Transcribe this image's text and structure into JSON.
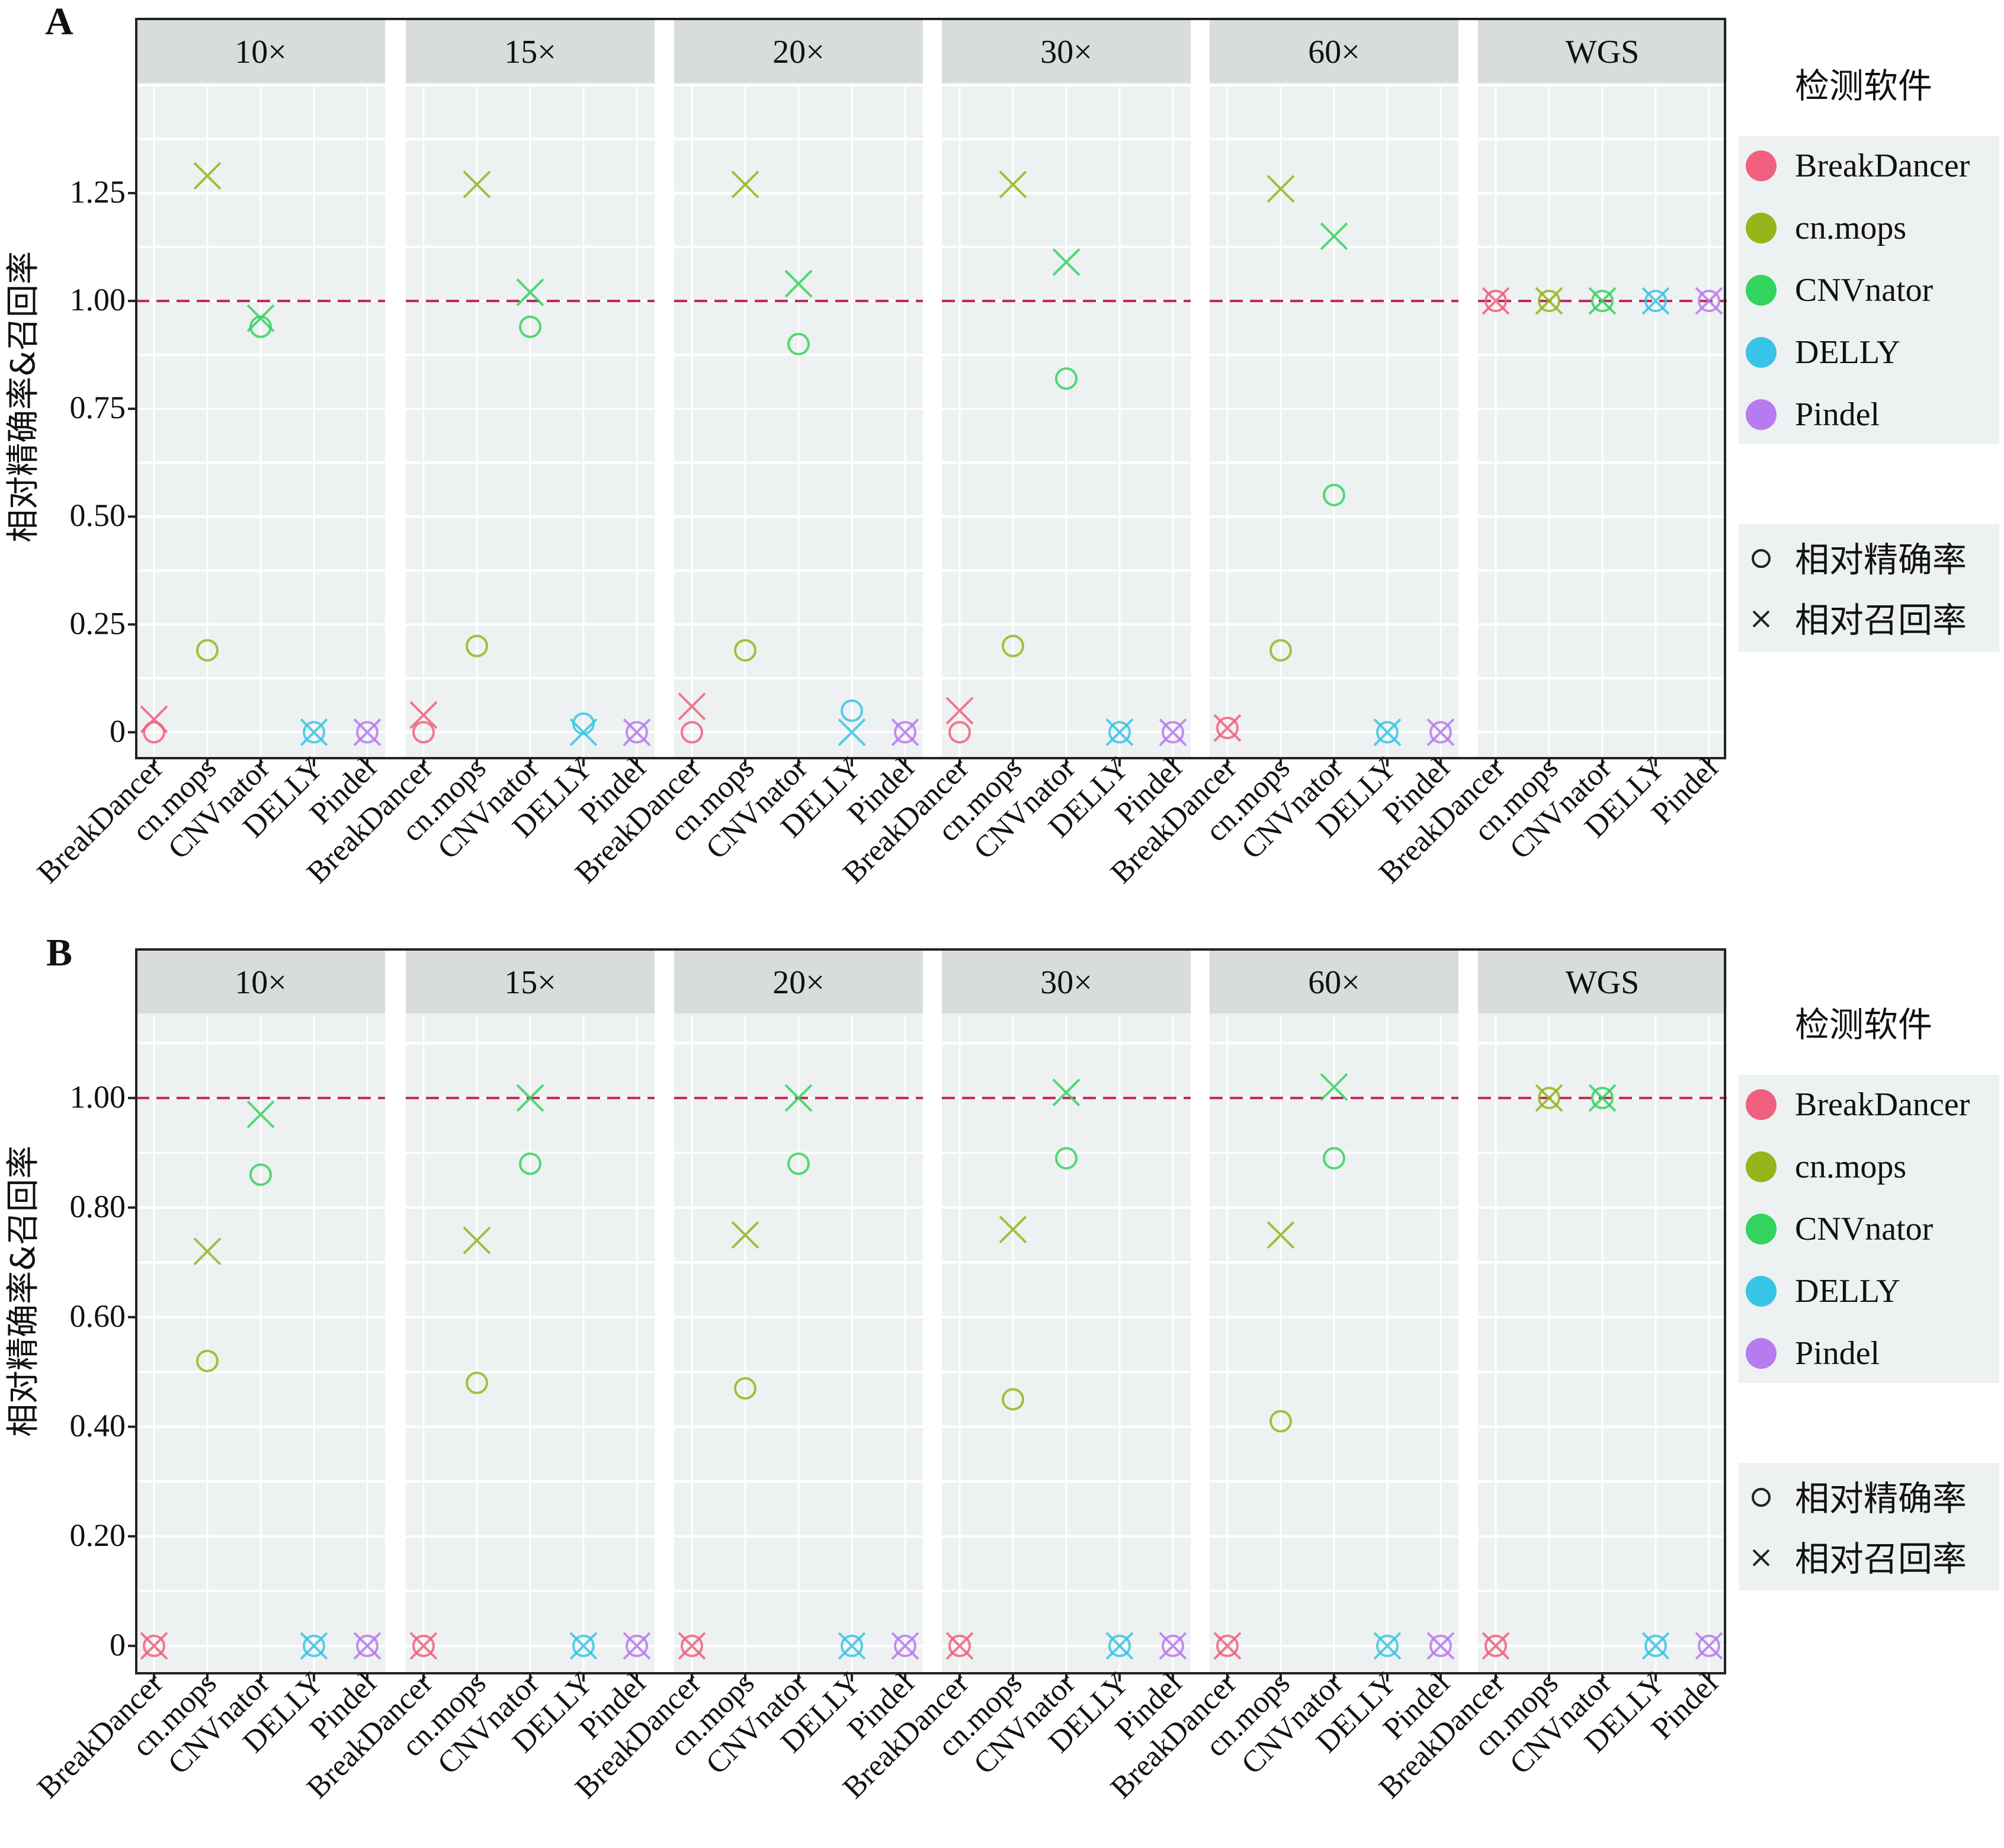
{
  "figure": {
    "panel_labels": [
      "A",
      "B"
    ],
    "y_title": "相对精确率&召回率",
    "legend_title": "检测软件",
    "shape_legend": [
      {
        "name": "相对精确率",
        "symbol": "○"
      },
      {
        "name": "相对召回率",
        "symbol": "×"
      }
    ],
    "tools": [
      "BreakDancer",
      "cn.mops",
      "CNVnator",
      "DELLY",
      "Pindel"
    ],
    "facets": [
      "10×",
      "15×",
      "20×",
      "30×",
      "60×",
      "WGS"
    ],
    "colors": {
      "BreakDancer": "#F0607E",
      "cn.mops": "#97B51A",
      "CNVnator": "#32D45E",
      "DELLY": "#38C4E6",
      "Pindel": "#B87AF0",
      "reference_line": "#C0235A",
      "panel_bg": "#EEF1F1",
      "strip_bg": "#D8DCDC"
    }
  },
  "chart_data": [
    {
      "type": "scatter",
      "panel": "A",
      "reference_line": 1.0,
      "ylim": [
        -0.06,
        1.5
      ],
      "yticks": [
        0,
        0.25,
        0.5,
        0.75,
        1.0,
        1.25
      ],
      "ytick_labels": [
        "0",
        "0.25",
        "0.50",
        "0.75",
        "1.00",
        "1.25"
      ],
      "ylabel": "相对精确率&召回率",
      "series": [
        {
          "name": "相对精确率",
          "facets": {
            "10×": [
              0,
              0.19,
              0.94,
              0,
              0
            ],
            "15×": [
              0,
              0.2,
              0.94,
              0.02,
              0
            ],
            "20×": [
              0,
              0.19,
              0.9,
              0.05,
              0
            ],
            "30×": [
              0,
              0.2,
              0.82,
              0,
              0
            ],
            "60×": [
              0.01,
              0.19,
              0.55,
              0,
              0
            ],
            "WGS": [
              1.0,
              1.0,
              1.0,
              1.0,
              1.0
            ]
          }
        },
        {
          "name": "相对召回率",
          "facets": {
            "10×": [
              0.03,
              1.29,
              0.96,
              0,
              0
            ],
            "15×": [
              0.04,
              1.27,
              1.02,
              0,
              0
            ],
            "20×": [
              0.06,
              1.27,
              1.04,
              0,
              0
            ],
            "30×": [
              0.05,
              1.27,
              1.09,
              0,
              0
            ],
            "60×": [
              0.01,
              1.26,
              1.15,
              0,
              0
            ],
            "WGS": [
              1.0,
              1.0,
              1.0,
              1.0,
              1.0
            ]
          }
        }
      ]
    },
    {
      "type": "scatter",
      "panel": "B",
      "reference_line": 1.0,
      "ylim": [
        -0.05,
        1.15
      ],
      "yticks": [
        0,
        0.2,
        0.4,
        0.6,
        0.8,
        1.0
      ],
      "ytick_labels": [
        "0",
        "0.20",
        "0.40",
        "0.60",
        "0.80",
        "1.00"
      ],
      "ylabel": "相对精确率&召回率",
      "series": [
        {
          "name": "相对精确率",
          "facets": {
            "10×": [
              0,
              0.52,
              0.86,
              0,
              0
            ],
            "15×": [
              0,
              0.48,
              0.88,
              0,
              0
            ],
            "20×": [
              0,
              0.47,
              0.88,
              0,
              0
            ],
            "30×": [
              0,
              0.45,
              0.89,
              0,
              0
            ],
            "60×": [
              0,
              0.41,
              0.89,
              0,
              0
            ],
            "WGS": [
              0,
              1.0,
              1.0,
              0,
              0
            ]
          }
        },
        {
          "name": "相对召回率",
          "facets": {
            "10×": [
              0,
              0.72,
              0.97,
              0,
              0
            ],
            "15×": [
              0,
              0.74,
              1.0,
              0,
              0
            ],
            "20×": [
              0,
              0.75,
              1.0,
              0,
              0
            ],
            "30×": [
              0,
              0.76,
              1.01,
              0,
              0
            ],
            "60×": [
              0,
              0.75,
              1.02,
              0,
              0
            ],
            "WGS": [
              0,
              1.0,
              1.0,
              0,
              0
            ]
          }
        }
      ]
    }
  ]
}
